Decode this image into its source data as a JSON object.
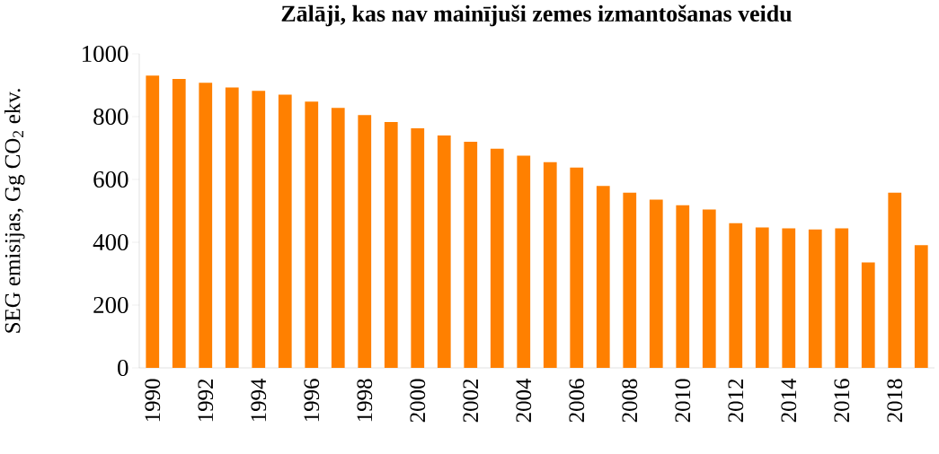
{
  "chart_data": {
    "type": "bar",
    "title": "Zālāji, kas nav mainījuši zemes izmantošanas veidu",
    "ylabel": "SEG emisijas, Gg CO$_{2}$ ekv.",
    "categories": [
      "1990",
      null,
      "1992",
      null,
      "1994",
      null,
      "1996",
      null,
      "1998",
      null,
      "2000",
      null,
      "2002",
      null,
      "2004",
      null,
      "2006",
      null,
      "2008",
      null,
      "2010",
      null,
      "2012",
      null,
      "2014",
      null,
      "2016",
      null,
      "2018",
      null
    ],
    "values": [
      931,
      920,
      908,
      893,
      882,
      870,
      848,
      828,
      805,
      783,
      763,
      740,
      720,
      698,
      676,
      655,
      638,
      579,
      558,
      536,
      518,
      504,
      461,
      447,
      444,
      441,
      444,
      336,
      558,
      391
    ],
    "color": "#ff8000",
    "ylim": [
      0,
      1000
    ],
    "yticks": [
      0,
      200,
      400,
      600,
      800,
      1000
    ],
    "grid": false
  }
}
